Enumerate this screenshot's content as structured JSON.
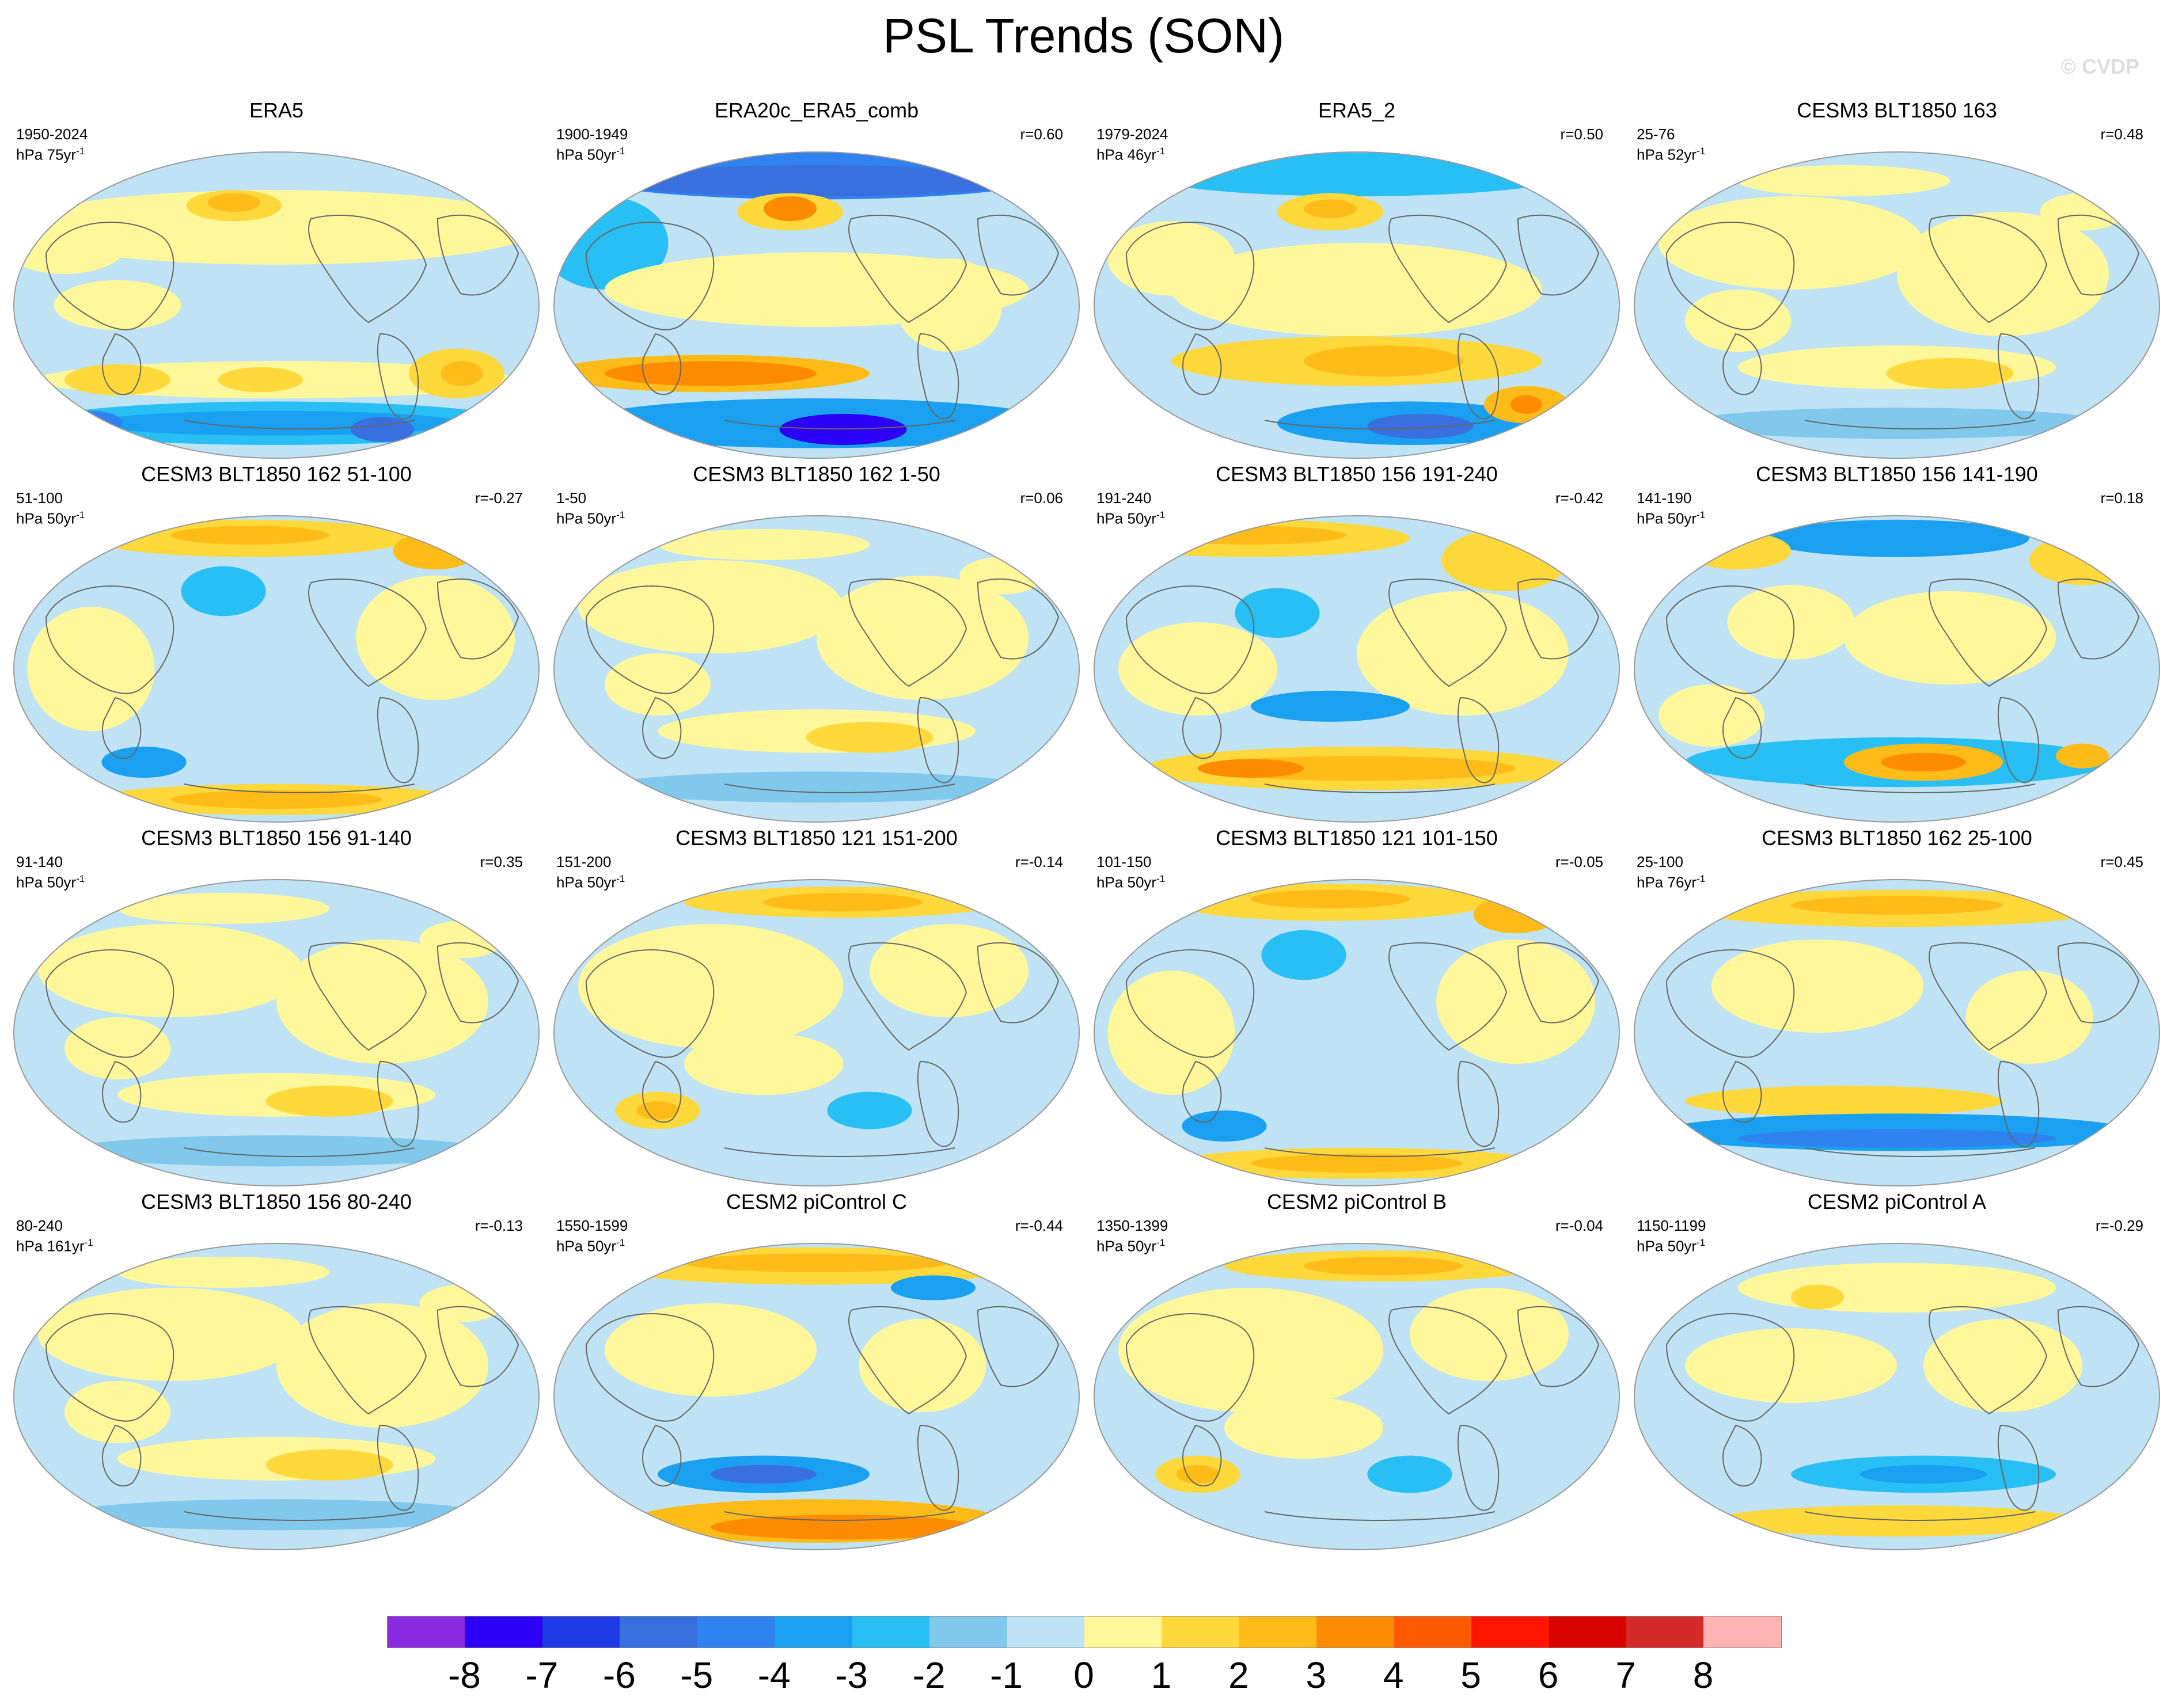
{
  "header": {
    "title": "PSL Trends (SON)",
    "watermark": "© CVDP"
  },
  "colors": {
    "background": "#ffffff",
    "land_line": "#666666",
    "outline": "#999999"
  },
  "panels": [
    {
      "title": "ERA5",
      "years": "1950-2024",
      "units_base": "hPa 75yr",
      "units_exp": "-1",
      "r": "",
      "field": "era5"
    },
    {
      "title": "ERA20c_ERA5_comb",
      "years": "1900-1949",
      "units_base": "hPa 50yr",
      "units_exp": "-1",
      "r": "r=0.60",
      "field": "era20c"
    },
    {
      "title": "ERA5_2",
      "years": "1979-2024",
      "units_base": "hPa 46yr",
      "units_exp": "-1",
      "r": "r=0.50",
      "field": "era5b"
    },
    {
      "title": "CESM3 BLT1850 163",
      "years": "25-76",
      "units_base": "hPa 52yr",
      "units_exp": "-1",
      "r": "r=0.48",
      "field": "mild"
    },
    {
      "title": "CESM3 BLT1850 162 51-100",
      "years": "51-100",
      "units_base": "hPa 50yr",
      "units_exp": "-1",
      "r": "r=-0.27",
      "field": "arcticpos"
    },
    {
      "title": "CESM3 BLT1850 162 1-50",
      "years": "1-50",
      "units_base": "hPa 50yr",
      "units_exp": "-1",
      "r": "r=0.06",
      "field": "mild"
    },
    {
      "title": "CESM3 BLT1850 156 191-240",
      "years": "191-240",
      "units_base": "hPa 50yr",
      "units_exp": "-1",
      "r": "r=-0.42",
      "field": "southpos"
    },
    {
      "title": "CESM3 BLT1850 156 141-190",
      "years": "141-190",
      "units_base": "hPa 50yr",
      "units_exp": "-1",
      "r": "r=0.18",
      "field": "southpos2"
    },
    {
      "title": "CESM3 BLT1850 156 91-140",
      "years": "91-140",
      "units_base": "hPa 50yr",
      "units_exp": "-1",
      "r": "r=0.35",
      "field": "mild"
    },
    {
      "title": "CESM3 BLT1850 121 151-200",
      "years": "151-200",
      "units_base": "hPa 50yr",
      "units_exp": "-1",
      "r": "r=-0.14",
      "field": "mild2"
    },
    {
      "title": "CESM3 BLT1850 121 101-150",
      "years": "101-150",
      "units_base": "hPa 50yr",
      "units_exp": "-1",
      "r": "r=-0.05",
      "field": "arcticpos"
    },
    {
      "title": "CESM3 BLT1850 162 25-100",
      "years": "25-100",
      "units_base": "hPa 76yr",
      "units_exp": "-1",
      "r": "r=0.45",
      "field": "southneg"
    },
    {
      "title": "CESM3 BLT1850 156 80-240",
      "years": "80-240",
      "units_base": "hPa 161yr",
      "units_exp": "-1",
      "r": "r=-0.13",
      "field": "mild"
    },
    {
      "title": "CESM2 piControl C",
      "years": "1550-1599",
      "units_base": "hPa 50yr",
      "units_exp": "-1",
      "r": "r=-0.44",
      "field": "piC"
    },
    {
      "title": "CESM2 piControl B",
      "years": "1350-1399",
      "units_base": "hPa 50yr",
      "units_exp": "-1",
      "r": "r=-0.04",
      "field": "mild2"
    },
    {
      "title": "CESM2 piControl A",
      "years": "1150-1199",
      "units_base": "hPa 50yr",
      "units_exp": "-1",
      "r": "r=-0.29",
      "field": "southneg2"
    }
  ],
  "colorbar": {
    "labels": [
      "-8",
      "-7",
      "-6",
      "-5",
      "-4",
      "-3",
      "-2",
      "-1",
      "0",
      "1",
      "2",
      "3",
      "4",
      "5",
      "6",
      "7",
      "8"
    ],
    "colors": [
      "#8a2be2",
      "#2b00f5",
      "#1f3be6",
      "#3a6fe0",
      "#2f82ef",
      "#1aa0f0",
      "#28bff5",
      "#80c8ec",
      "#bfe3f4",
      "#fff79a",
      "#ffd83b",
      "#ffbc18",
      "#ff8c00",
      "#ff5a00",
      "#ff1500",
      "#d80000",
      "#d42a2a",
      "#ffb4b4"
    ]
  }
}
